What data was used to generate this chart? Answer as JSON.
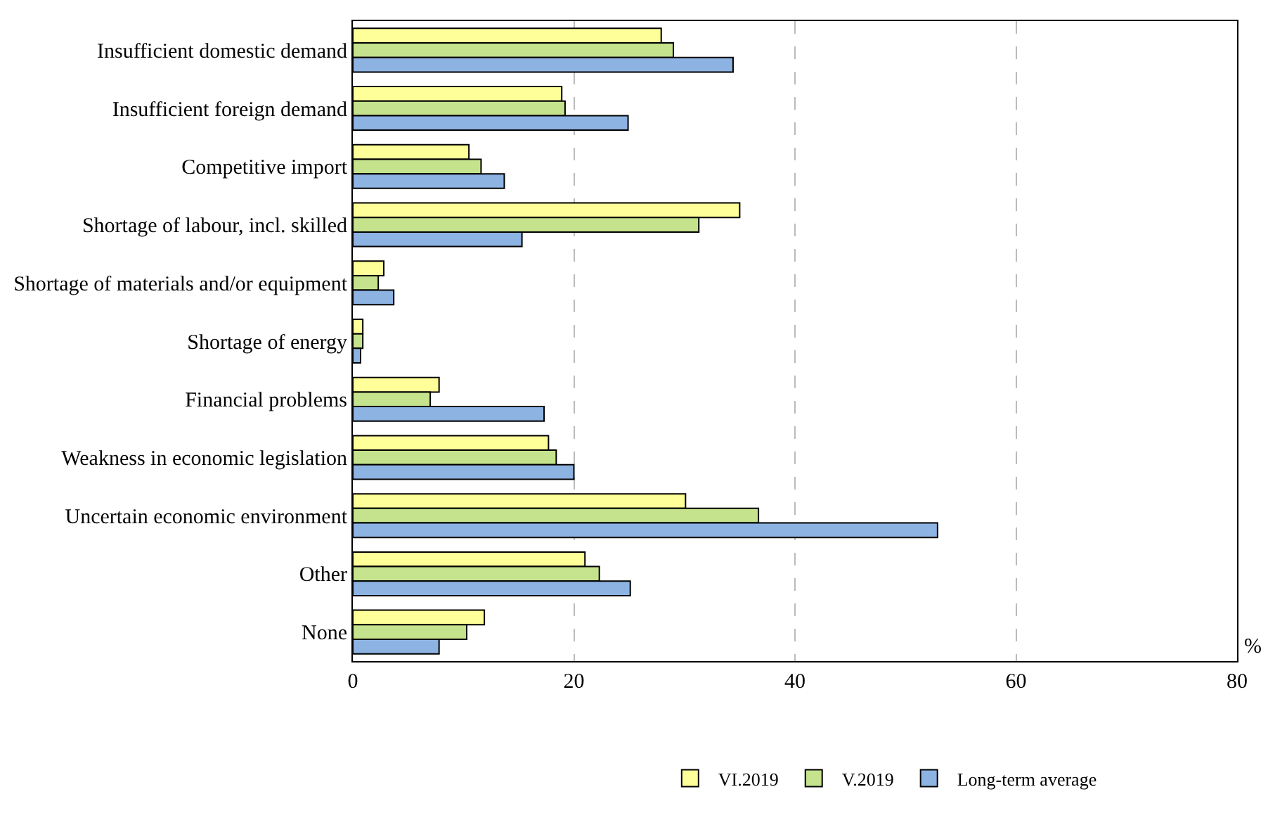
{
  "chart_data": {
    "type": "bar",
    "orientation": "horizontal",
    "xlabel": "%",
    "categories": [
      "Insufficient domestic demand",
      "Insufficient foreign demand",
      "Competitive import",
      "Shortage of labour, incl. skilled",
      "Shortage of materials and/or equipment",
      "Shortage of energy",
      "Financial problems",
      "Weakness in economic legislation",
      "Uncertain economic environment",
      "Other",
      "None"
    ],
    "series": [
      {
        "name": "VI.2019",
        "color": "#ffff99",
        "values": [
          27.9,
          18.9,
          10.5,
          35.0,
          2.8,
          0.9,
          7.8,
          17.7,
          30.1,
          21.0,
          11.9
        ]
      },
      {
        "name": "V.2019",
        "color": "#c4e38c",
        "values": [
          29.0,
          19.2,
          11.6,
          31.3,
          2.3,
          0.9,
          7.0,
          18.4,
          36.7,
          22.3,
          10.3
        ]
      },
      {
        "name": "Long-term average",
        "color": "#8db3e2",
        "values": [
          34.4,
          24.9,
          13.7,
          15.3,
          3.7,
          0.7,
          17.3,
          20.0,
          52.9,
          25.1,
          7.8
        ]
      }
    ],
    "xlim": [
      0,
      80
    ],
    "xticks": [
      0,
      20,
      40,
      60,
      80
    ],
    "grid": "x",
    "legend": "bottom"
  }
}
